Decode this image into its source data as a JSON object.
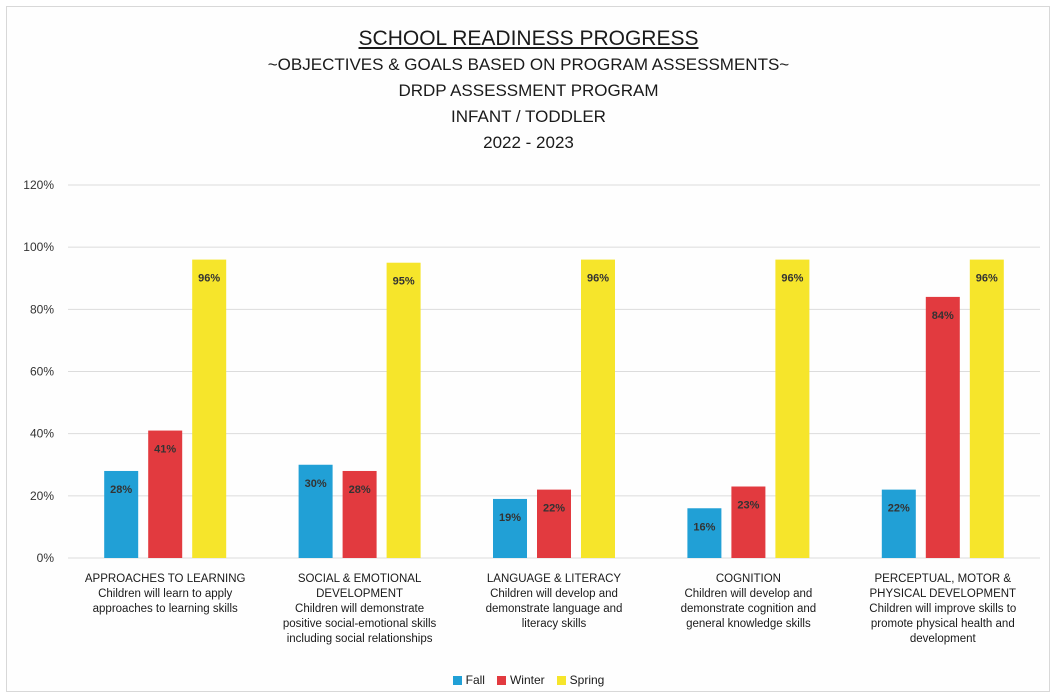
{
  "titles": {
    "main": "SCHOOL READINESS PROGRESS",
    "sub1": "~OBJECTIVES & GOALS BASED ON PROGRAM ASSESSMENTS~",
    "sub2": "DRDP ASSESSMENT PROGRAM",
    "sub3": "INFANT / TODDLER",
    "sub4": "2022 - 2023"
  },
  "colors": {
    "Fall": "#21a0d6",
    "Winter": "#e23a3f",
    "Spring": "#f6e52b",
    "grid": "#dcdcdc"
  },
  "chart_data": {
    "type": "bar",
    "title": "SCHOOL READINESS PROGRESS",
    "ylim": [
      0,
      120
    ],
    "yticks": [
      0,
      20,
      40,
      60,
      80,
      100,
      120
    ],
    "ytick_labels": [
      "0%",
      "20%",
      "40%",
      "60%",
      "80%",
      "100%",
      "120%"
    ],
    "grid": true,
    "legend": "bottom",
    "categories": [
      [
        "APPROACHES TO LEARNING",
        "Children will learn to apply",
        "approaches to learning skills"
      ],
      [
        "SOCIAL & EMOTIONAL",
        "DEVELOPMENT",
        "Children will demonstrate",
        "positive social-emotional skills",
        "including social relationships"
      ],
      [
        "LANGUAGE & LITERACY",
        "Children will develop and",
        "demonstrate language and",
        "literacy skills"
      ],
      [
        "COGNITION",
        "Children will develop and",
        "demonstrate cognition and",
        "general knowledge skills"
      ],
      [
        "PERCEPTUAL, MOTOR &",
        "PHYSICAL DEVELOPMENT",
        "Children will improve skills to",
        "promote physical health and",
        "development"
      ]
    ],
    "series": [
      {
        "name": "Fall",
        "values": [
          28,
          30,
          19,
          16,
          22
        ],
        "labels": [
          "28%",
          "30%",
          "19%",
          "16%",
          "22%"
        ]
      },
      {
        "name": "Winter",
        "values": [
          41,
          28,
          22,
          23,
          84
        ],
        "labels": [
          "41%",
          "28%",
          "22%",
          "23%",
          "84%"
        ]
      },
      {
        "name": "Spring",
        "values": [
          96,
          95,
          96,
          96,
          96
        ],
        "labels": [
          "96%",
          "95%",
          "96%",
          "96%",
          "96%"
        ]
      }
    ]
  }
}
